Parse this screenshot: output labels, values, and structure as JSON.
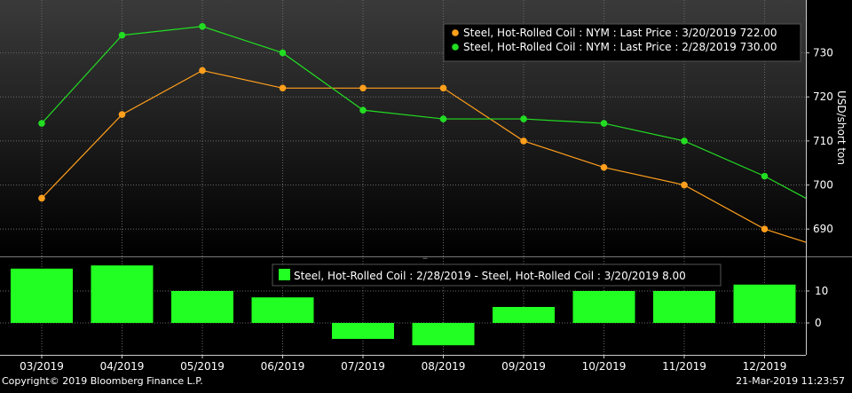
{
  "chart_data": [
    {
      "type": "line",
      "categories": [
        "03/2019",
        "04/2019",
        "05/2019",
        "06/2019",
        "07/2019",
        "08/2019",
        "09/2019",
        "10/2019",
        "11/2019",
        "12/2019"
      ],
      "ylabel": "USD/short ton",
      "ylim": [
        684,
        742
      ],
      "yticks": [
        690,
        700,
        710,
        720,
        730
      ],
      "grid": true,
      "legend_position": "top-right",
      "series": [
        {
          "name": "Steel, Hot-Rolled Coil : NYM : Last Price : 3/20/2019 722.00",
          "color": "#ff9f1c",
          "values": [
            697,
            716,
            726,
            722,
            722,
            722,
            710,
            704,
            700,
            690
          ],
          "tail_value": 687
        },
        {
          "name": "Steel, Hot-Rolled Coil : NYM : Last Price : 2/28/2019 730.00",
          "color": "#22dd22",
          "values": [
            714,
            734,
            736,
            730,
            717,
            715,
            715,
            714,
            710,
            702
          ],
          "tail_value": 697
        }
      ]
    },
    {
      "type": "bar",
      "categories": [
        "03/2019",
        "04/2019",
        "05/2019",
        "06/2019",
        "07/2019",
        "08/2019",
        "09/2019",
        "10/2019",
        "11/2019",
        "12/2019"
      ],
      "ylim": [
        -10,
        20
      ],
      "yticks": [
        0,
        10
      ],
      "legend_position": "top-center",
      "series": [
        {
          "name": "Steel, Hot-Rolled Coil : 2/28/2019 - Steel, Hot-Rolled Coil : 3/20/2019 8.00",
          "color": "#22ff22",
          "values": [
            17,
            18,
            10,
            8,
            -5,
            -7,
            5,
            10,
            10,
            12
          ]
        }
      ]
    }
  ],
  "footer": {
    "copyright": "Copyright© 2019 Bloomberg Finance L.P.",
    "timestamp": "21-Mar-2019 11:23:57"
  }
}
